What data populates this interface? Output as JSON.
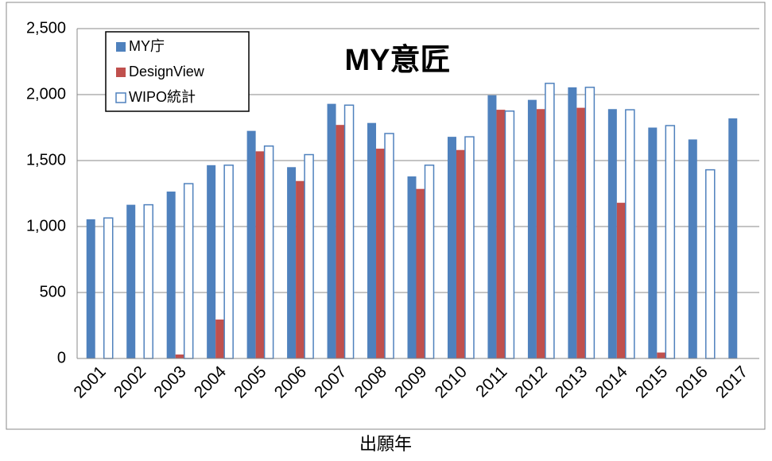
{
  "chart_data": {
    "type": "bar",
    "title": "MY意匠",
    "x_label": "出願年",
    "categories": [
      "2001",
      "2002",
      "2003",
      "2004",
      "2005",
      "2006",
      "2007",
      "2008",
      "2009",
      "2010",
      "2011",
      "2012",
      "2013",
      "2014",
      "2015",
      "2016",
      "2017"
    ],
    "series": [
      {
        "name": "MY庁",
        "color": "#4f81bd",
        "values": [
          1055,
          1165,
          1265,
          1465,
          1725,
          1450,
          1930,
          1785,
          1380,
          1680,
          1995,
          1960,
          2055,
          1890,
          1750,
          1660,
          1820
        ]
      },
      {
        "name": "DesignView",
        "color": "#c0504d",
        "values": [
          null,
          null,
          30,
          295,
          1570,
          1345,
          1770,
          1590,
          1285,
          1580,
          1885,
          1890,
          1900,
          1180,
          45,
          null,
          null
        ]
      },
      {
        "name": "WIPO統計",
        "color": "#ffffff",
        "values": [
          1065,
          1165,
          1325,
          1465,
          1610,
          1545,
          1920,
          1705,
          1465,
          1680,
          1875,
          2085,
          2055,
          1885,
          1765,
          1430,
          null
        ]
      }
    ],
    "ylim": [
      0,
      2500
    ],
    "yticks": [
      0,
      500,
      {
        "value": 1000,
        "label": "1,000"
      },
      {
        "value": 1500,
        "label": "1,500"
      },
      {
        "value": 2000,
        "label": "2,000"
      },
      {
        "value": 2500,
        "label": "2,500"
      }
    ],
    "grid": true,
    "legend": "top-left"
  }
}
